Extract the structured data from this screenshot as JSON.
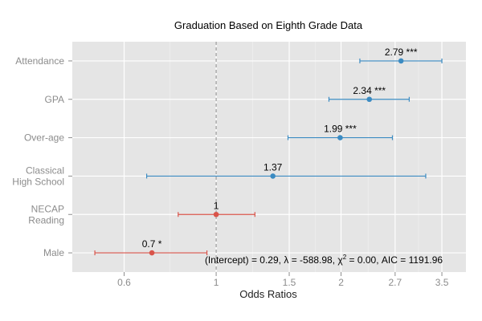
{
  "chart_data": {
    "type": "scatter",
    "title": "Graduation Based on Eighth Grade Data",
    "xlabel": "Odds Ratios",
    "ylabel": "",
    "x_scale": "log",
    "xlim": [
      0.45,
      4.0
    ],
    "x_ticks": [
      {
        "value": 0.6,
        "label": "0.6"
      },
      {
        "value": 1,
        "label": "1"
      },
      {
        "value": 1.5,
        "label": "1.5"
      },
      {
        "value": 2,
        "label": "2"
      },
      {
        "value": 2.7,
        "label": "2.7"
      },
      {
        "value": 3.5,
        "label": "3.5"
      }
    ],
    "reference_line": 1,
    "grid": true,
    "categories": [
      {
        "lines": [
          "Attendance"
        ],
        "estimate": 2.79,
        "low": 2.22,
        "high": 3.5,
        "label": "2.79 ***",
        "color": "#3b8bc2"
      },
      {
        "lines": [
          "GPA"
        ],
        "estimate": 2.34,
        "low": 1.87,
        "high": 2.92,
        "label": "2.34 ***",
        "color": "#3b8bc2"
      },
      {
        "lines": [
          "Over-age"
        ],
        "estimate": 1.99,
        "low": 1.49,
        "high": 2.66,
        "label": "1.99 ***",
        "color": "#3b8bc2"
      },
      {
        "lines": [
          "Classical",
          "High School"
        ],
        "estimate": 1.37,
        "low": 0.68,
        "high": 3.2,
        "label": "1.37",
        "color": "#3b8bc2"
      },
      {
        "lines": [
          "NECAP",
          "Reading"
        ],
        "estimate": 1.0,
        "low": 0.81,
        "high": 1.24,
        "label": "1",
        "color": "#d9544a"
      },
      {
        "lines": [
          "Male"
        ],
        "estimate": 0.7,
        "low": 0.51,
        "high": 0.95,
        "label": "0.7 *",
        "color": "#d9544a"
      }
    ],
    "annotation": {
      "intercept": "(Intercept) = 0.29,",
      "lambda_sym": "λ",
      "lambda": "= -588.98,",
      "chi_sym": "χ",
      "chi_sup": "2",
      "chi": "= 0.00,",
      "aic": "AIC = 1191.96"
    }
  }
}
